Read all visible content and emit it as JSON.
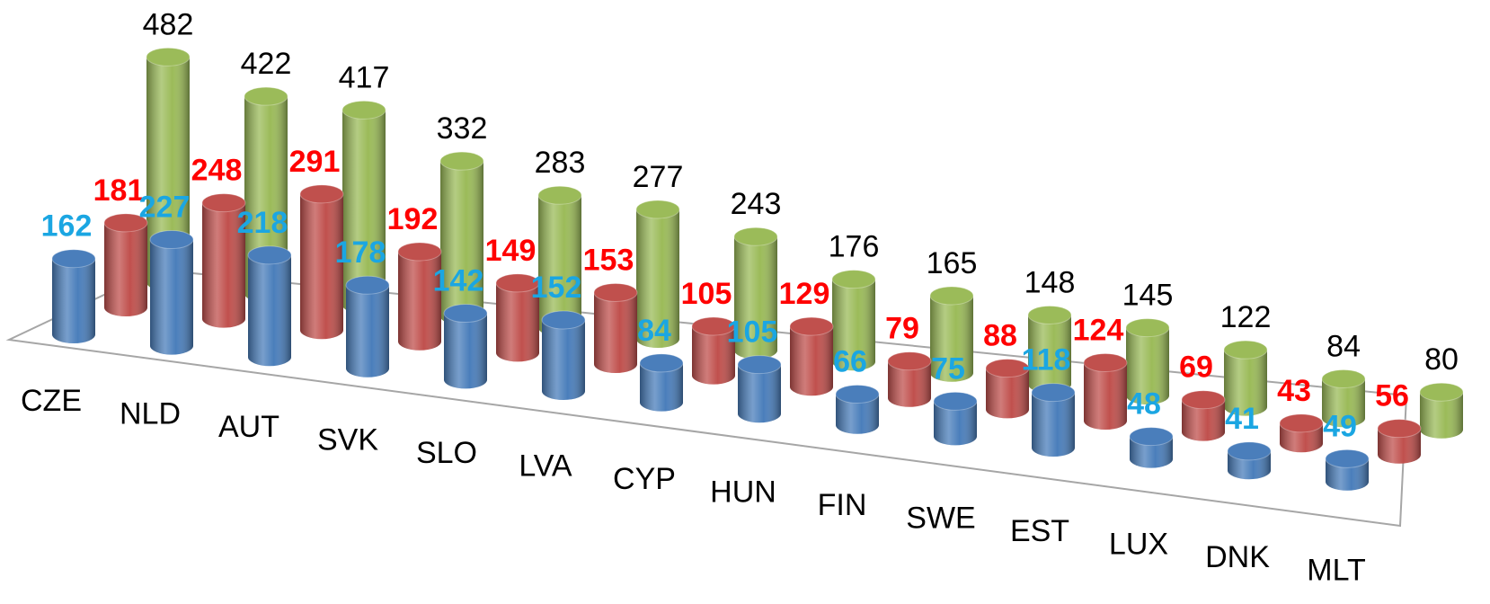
{
  "chart_data": {
    "type": "bar3d",
    "categories": [
      "CZE",
      "NLD",
      "AUT",
      "SVK",
      "SLO",
      "LVA",
      "CYP",
      "HUN",
      "FIN",
      "SWE",
      "EST",
      "LUX",
      "DNK",
      "MLT"
    ],
    "series": [
      {
        "color": "#4a7ebb",
        "label_color": "#1ba6e2",
        "values": [
          162,
          227,
          218,
          178,
          142,
          152,
          84,
          105,
          66,
          75,
          118,
          48,
          41,
          49
        ]
      },
      {
        "color": "#c0504d",
        "label_color": "#ff0000",
        "values": [
          181,
          248,
          291,
          192,
          149,
          153,
          105,
          129,
          79,
          88,
          124,
          69,
          43,
          56
        ]
      },
      {
        "color": "#9bbb59",
        "label_color": "#000000",
        "values": [
          482,
          422,
          417,
          332,
          283,
          277,
          243,
          176,
          165,
          148,
          145,
          122,
          84,
          80
        ]
      }
    ]
  }
}
